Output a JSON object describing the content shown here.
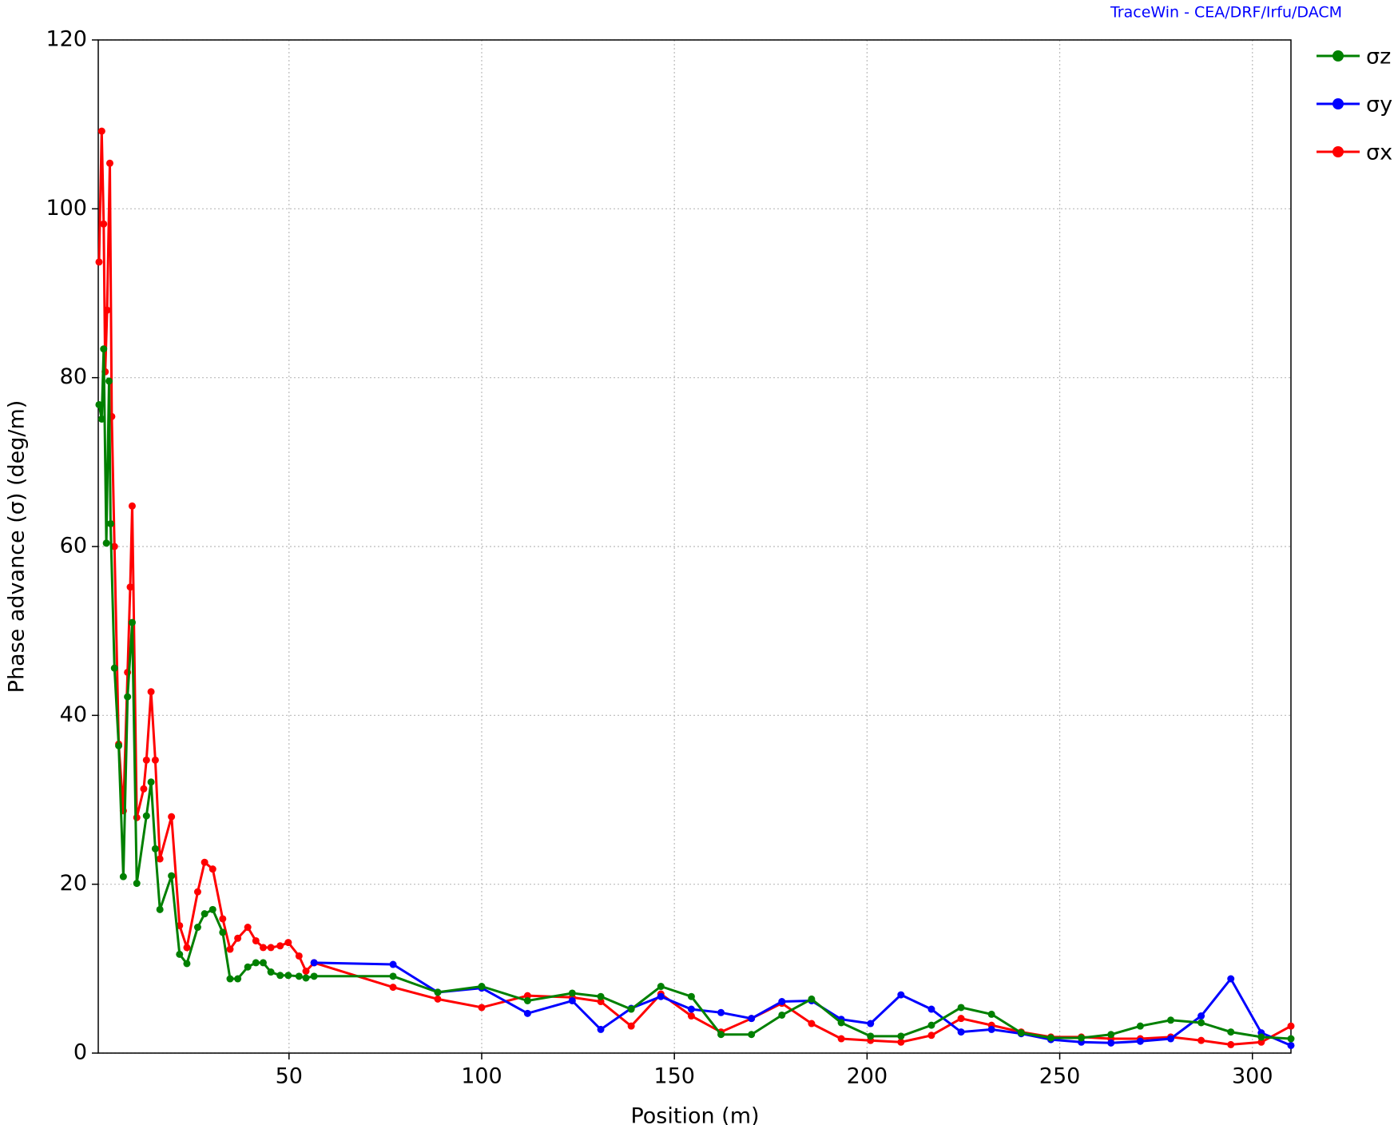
{
  "chart_data": {
    "type": "line",
    "watermark": "TraceWin - CEA/DRF/Irfu/DACM",
    "xlabel": "Position (m)",
    "ylabel": "Phase advance (σ) (deg/m)",
    "xlim": [
      0.5,
      310
    ],
    "ylim": [
      0,
      120
    ],
    "xticks": [
      50,
      100,
      150,
      200,
      250,
      300
    ],
    "yticks": [
      0,
      20,
      40,
      60,
      80,
      100,
      120
    ],
    "grid": true,
    "series": [
      {
        "name": "σz",
        "color": "#008000",
        "x": [
          0.7,
          1.4,
          1.9,
          2.6,
          3.3,
          3.7,
          4.7,
          5.8,
          7,
          8.1,
          9.3,
          10.5,
          13,
          14.2,
          15.3,
          16.5,
          19.5,
          21.6,
          23.5,
          26.3,
          28.1,
          30.2,
          32.8,
          34.7,
          36.7,
          39.3,
          41.4,
          43.3,
          45.3,
          47.7,
          49.8,
          52.6,
          54.4,
          56.5,
          77,
          88.6,
          100,
          111.9,
          123.5,
          130.9,
          138.8,
          146.5,
          154.4,
          162.1,
          170,
          177.9,
          185.6,
          193.3,
          200.9,
          208.8,
          216.7,
          224.4,
          232.3,
          240,
          247.7,
          255.6,
          263.3,
          270.9,
          278.8,
          286.7,
          294.4,
          302.3,
          310
        ],
        "values": [
          76.8,
          75.1,
          83.4,
          60.4,
          79.6,
          62.7,
          45.6,
          36.4,
          20.9,
          42.2,
          51,
          20.1,
          28.1,
          32.1,
          24.2,
          17,
          21,
          11.7,
          10.6,
          14.9,
          16.5,
          17,
          14.3,
          8.8,
          8.8,
          10.2,
          10.7,
          10.7,
          9.6,
          9.2,
          9.2,
          9.1,
          8.9,
          9.1,
          9.1,
          7.2,
          7.9,
          6.2,
          7.1,
          6.7,
          5.2,
          7.9,
          6.7,
          2.2,
          2.2,
          4.5,
          6.4,
          3.6,
          2.0,
          2.0,
          3.3,
          5.4,
          4.6,
          2.4,
          1.8,
          1.8,
          2.2,
          3.2,
          3.9,
          3.6,
          2.5,
          1.9,
          1.7
        ]
      },
      {
        "name": "σy",
        "color": "#0000ff",
        "x": [
          56.5,
          77,
          88.6,
          100,
          111.9,
          123.5,
          130.9,
          138.8,
          146.5,
          154.4,
          162.1,
          170,
          177.9,
          185.6,
          193.3,
          200.9,
          208.8,
          216.7,
          224.4,
          232.3,
          240,
          247.7,
          255.6,
          263.3,
          270.9,
          278.8,
          286.7,
          294.4,
          302.3,
          310
        ],
        "values": [
          10.7,
          10.5,
          7.2,
          7.7,
          4.7,
          6.2,
          2.8,
          5.3,
          6.7,
          5.2,
          4.8,
          4.1,
          6.1,
          6.2,
          4.0,
          3.5,
          6.9,
          5.2,
          2.5,
          2.8,
          2.3,
          1.6,
          1.3,
          1.2,
          1.4,
          1.7,
          4.4,
          8.8,
          2.4,
          0.9
        ]
      },
      {
        "name": "σx",
        "color": "#ff0000",
        "x": [
          0.7,
          1.4,
          1.9,
          2.3,
          2.8,
          3.5,
          4,
          4.7,
          5.8,
          7,
          8.1,
          8.8,
          9.3,
          10.5,
          12.3,
          13,
          14.2,
          15.3,
          16.5,
          19.5,
          21.6,
          23.5,
          26.3,
          28.1,
          30.2,
          32.8,
          34.7,
          36.7,
          39.3,
          41.4,
          43.3,
          45.3,
          47.7,
          49.8,
          52.6,
          54.4,
          56.5,
          77,
          88.6,
          100,
          111.9,
          123.5,
          130.9,
          138.8,
          146.5,
          154.4,
          162.1,
          170,
          177.9,
          185.6,
          193.3,
          200.9,
          208.8,
          216.7,
          224.4,
          232.3,
          240,
          247.7,
          255.6,
          263.3,
          270.9,
          278.8,
          286.7,
          294.4,
          302.3,
          310
        ],
        "values": [
          93.7,
          109.2,
          98.2,
          80.7,
          88,
          105.4,
          75.4,
          60,
          36.6,
          28.7,
          45.1,
          55.2,
          64.8,
          27.9,
          31.3,
          34.7,
          42.8,
          34.7,
          23,
          28,
          15.1,
          12.5,
          19.1,
          22.6,
          21.8,
          15.9,
          12.3,
          13.6,
          14.9,
          13.3,
          12.5,
          12.5,
          12.7,
          13.1,
          11.5,
          9.7,
          10.7,
          7.8,
          6.4,
          5.4,
          6.8,
          6.6,
          6.1,
          3.2,
          7.0,
          4.4,
          2.5,
          4.1,
          5.9,
          3.5,
          1.7,
          1.5,
          1.3,
          2.1,
          4.1,
          3.3,
          2.5,
          1.9,
          1.9,
          1.7,
          1.7,
          1.9,
          1.5,
          1.0,
          1.3,
          3.2
        ]
      }
    ]
  }
}
